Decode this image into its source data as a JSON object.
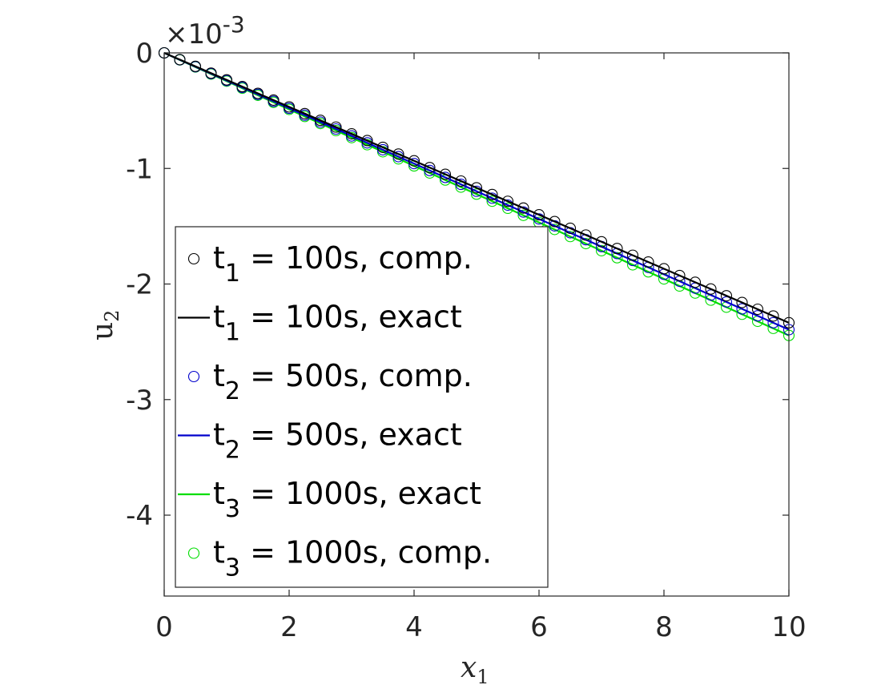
{
  "chart_data": {
    "type": "line",
    "xlabel": "x",
    "xlabel_sub": "1",
    "ylabel": "u",
    "ylabel_sub": "2",
    "y_exponent_label": "×10",
    "y_exponent": "-3",
    "xlim": [
      0,
      10
    ],
    "ylim": [
      -4.7,
      0
    ],
    "x_ticks": [
      0,
      2,
      4,
      6,
      8,
      10
    ],
    "y_ticks": [
      0,
      -1,
      -2,
      -3,
      -4
    ],
    "x_tick_labels": [
      "0",
      "2",
      "4",
      "6",
      "8",
      "10"
    ],
    "y_tick_labels": [
      "0",
      "-1",
      "-2",
      "-3",
      "-4"
    ],
    "grid": false,
    "legend_position": "bottom-left",
    "series": [
      {
        "name": "t = 100s, comp.",
        "sub": "1",
        "kind": "markers",
        "color": "#000000",
        "slope": -0.2335,
        "x_start": 0,
        "x_end": 10,
        "x_step": 0.25
      },
      {
        "name": "t = 100s, exact",
        "sub": "1",
        "kind": "line",
        "color": "#000000",
        "slope": -0.2335,
        "x_start": 0,
        "x_end": 10
      },
      {
        "name": "t = 500s, comp.",
        "sub": "2",
        "kind": "markers",
        "color": "#0000cc",
        "slope": -0.2395,
        "x_start": 0,
        "x_end": 10,
        "x_step": 0.25
      },
      {
        "name": "t = 500s, exact",
        "sub": "2",
        "kind": "line",
        "color": "#0000cc",
        "slope": -0.2395,
        "x_start": 0,
        "x_end": 10
      },
      {
        "name": "t = 1000s, exact",
        "sub": "3",
        "kind": "line",
        "color": "#00dd00",
        "slope": -0.2445,
        "x_start": 0,
        "x_end": 10
      },
      {
        "name": "t = 1000s, comp.",
        "sub": "3",
        "kind": "markers",
        "color": "#00dd00",
        "slope": -0.2445,
        "x_start": 0,
        "x_end": 10,
        "x_step": 0.25
      }
    ]
  }
}
